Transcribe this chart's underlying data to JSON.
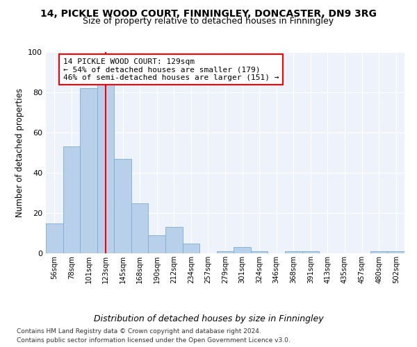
{
  "title": "14, PICKLE WOOD COURT, FINNINGLEY, DONCASTER, DN9 3RG",
  "subtitle": "Size of property relative to detached houses in Finningley",
  "xlabel": "Distribution of detached houses by size in Finningley",
  "ylabel": "Number of detached properties",
  "categories": [
    "56sqm",
    "78sqm",
    "101sqm",
    "123sqm",
    "145sqm",
    "168sqm",
    "190sqm",
    "212sqm",
    "234sqm",
    "257sqm",
    "279sqm",
    "301sqm",
    "324sqm",
    "346sqm",
    "368sqm",
    "391sqm",
    "413sqm",
    "435sqm",
    "457sqm",
    "480sqm",
    "502sqm"
  ],
  "values": [
    15,
    53,
    82,
    85,
    47,
    25,
    9,
    13,
    5,
    0,
    1,
    3,
    1,
    0,
    1,
    1,
    0,
    0,
    0,
    1,
    1
  ],
  "bar_color": "#b8d0ea",
  "bar_edge_color": "#7aadd4",
  "red_line_x": 3.0,
  "annotation_text": "14 PICKLE WOOD COURT: 129sqm\n← 54% of detached houses are smaller (179)\n46% of semi-detached houses are larger (151) →",
  "annotation_box_color": "white",
  "annotation_box_edge_color": "red",
  "ylim": [
    0,
    100
  ],
  "yticks": [
    0,
    20,
    40,
    60,
    80,
    100
  ],
  "background_color": "#eef2fb",
  "footnote1": "Contains HM Land Registry data © Crown copyright and database right 2024.",
  "footnote2": "Contains public sector information licensed under the Open Government Licence v3.0.",
  "title_fontsize": 10,
  "subtitle_fontsize": 9,
  "xlabel_fontsize": 9,
  "ylabel_fontsize": 8.5,
  "annotation_fontsize": 8,
  "footnote_fontsize": 6.5
}
